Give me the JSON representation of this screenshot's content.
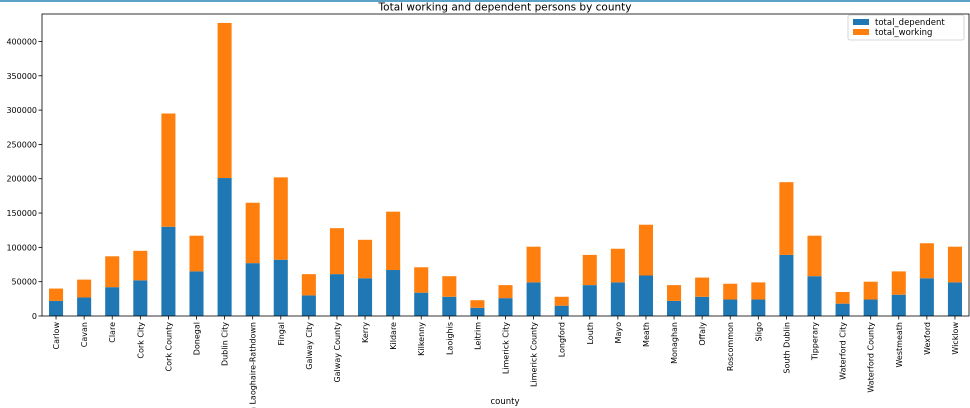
{
  "chart_data": {
    "type": "bar",
    "stacked": true,
    "title": "Total working and dependent persons by county",
    "xlabel": "county",
    "ylabel": "",
    "ylim": [
      0,
      440000
    ],
    "yticks": [
      0,
      50000,
      100000,
      150000,
      200000,
      250000,
      300000,
      350000,
      400000
    ],
    "legend_position": "top-right",
    "grid": false,
    "categories": [
      "Carlow",
      "Cavan",
      "Clare",
      "Cork City",
      "Cork County",
      "Donegal",
      "Dublin City",
      "Dun Laoghaire-Rathdown",
      "Fingal",
      "Galway City",
      "Galway County",
      "Kerry",
      "Kildare",
      "Kilkenny",
      "Laoighis",
      "Leitrim",
      "Limerick City",
      "Limerick County",
      "Longford",
      "Louth",
      "Mayo",
      "Meath",
      "Monaghan",
      "Offaly",
      "Roscommon",
      "Sligo",
      "South Dublin",
      "Tipperary",
      "Waterford City",
      "Waterford County",
      "Westmeath",
      "Wexford",
      "Wicklow"
    ],
    "series": [
      {
        "name": "total_dependent",
        "color": "#1f77b4",
        "values": [
          22000,
          27000,
          42000,
          52000,
          130000,
          65000,
          201000,
          77000,
          82000,
          30000,
          61000,
          55000,
          67000,
          34000,
          28000,
          12000,
          26000,
          49000,
          15000,
          45000,
          49000,
          59000,
          22000,
          28000,
          24000,
          24000,
          89000,
          58000,
          18000,
          24000,
          31000,
          55000,
          49000
        ]
      },
      {
        "name": "total_working",
        "color": "#ff7f0e",
        "values": [
          18000,
          26000,
          45000,
          43000,
          165000,
          52000,
          226000,
          88000,
          120000,
          31000,
          67000,
          56000,
          85000,
          37000,
          30000,
          11000,
          19000,
          52000,
          13000,
          44000,
          49000,
          74000,
          23000,
          28000,
          23000,
          25000,
          106000,
          59000,
          17000,
          26000,
          34000,
          51000,
          52000
        ]
      }
    ]
  }
}
